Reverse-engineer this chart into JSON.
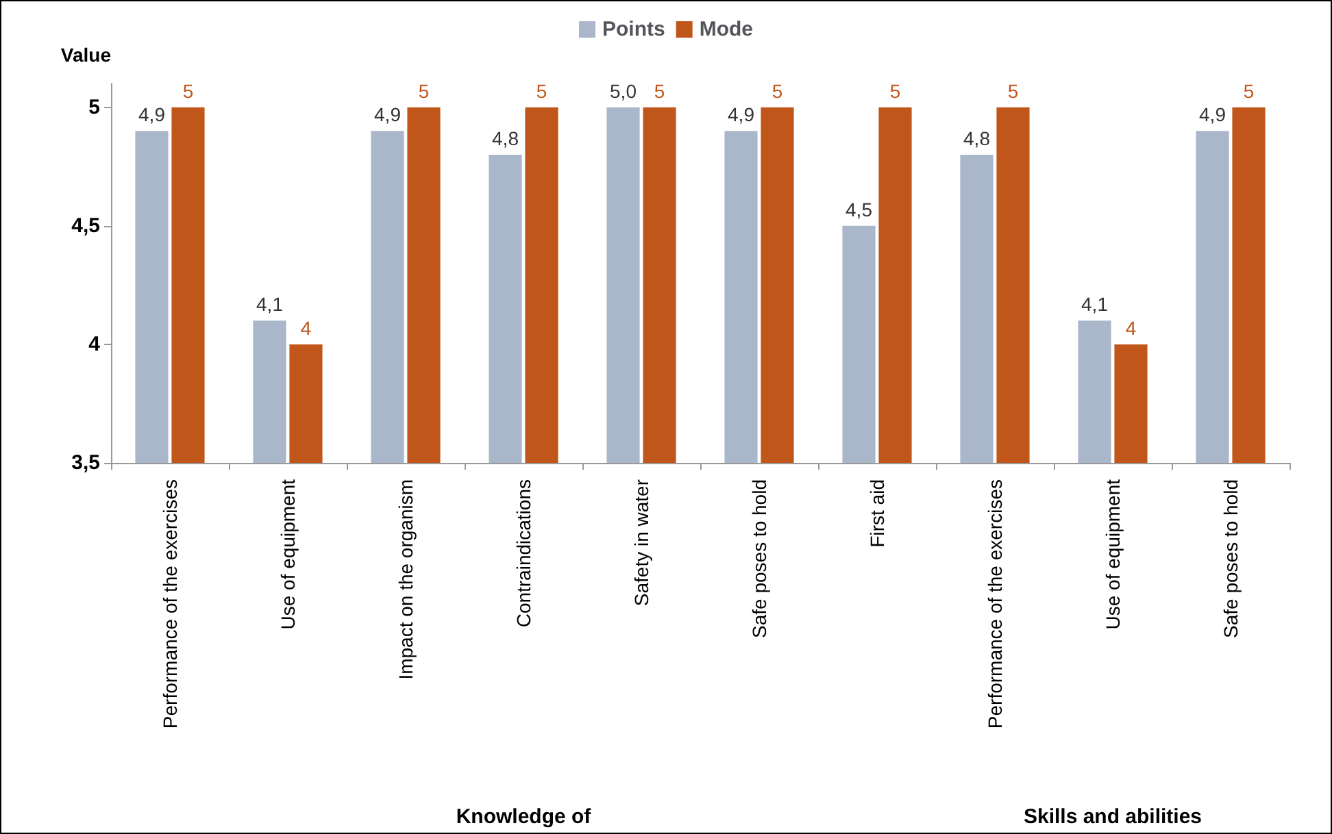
{
  "chart_data": {
    "type": "bar",
    "ylabel": "Value",
    "categories": [
      "Performance of the exercises",
      "Use of equipment",
      "Impact on the organism",
      "Contraindications",
      "Safety in water",
      "Safe poses to hold",
      "First aid",
      "Performance of the exercises",
      "Use of equipment",
      "Safe poses to hold"
    ],
    "series": [
      {
        "name": "Points",
        "color": "#aab6c9",
        "values": [
          4.9,
          4.1,
          4.9,
          4.8,
          5.0,
          4.9,
          4.5,
          4.8,
          4.1,
          4.9
        ],
        "value_labels": [
          "4,9",
          "4,1",
          "4,9",
          "4,8",
          "5,0",
          "4,9",
          "4,5",
          "4,8",
          "4,1",
          "4,9"
        ]
      },
      {
        "name": "Mode",
        "color": "#c0561a",
        "values": [
          5,
          4,
          5,
          5,
          5,
          5,
          5,
          5,
          4,
          5
        ],
        "value_labels": [
          "5",
          "4",
          "5",
          "5",
          "5",
          "5",
          "5",
          "5",
          "4",
          "5"
        ]
      }
    ],
    "ylim": [
      3.5,
      5.1
    ],
    "yticks": [
      {
        "value": 3.5,
        "label": "3,5"
      },
      {
        "value": 4,
        "label": "4"
      },
      {
        "value": 4.5,
        "label": "4,5"
      },
      {
        "value": 5,
        "label": "5"
      }
    ],
    "grid": false,
    "legend": "top",
    "annotations": [
      "Knowledge of",
      "Skills and abilities"
    ]
  }
}
